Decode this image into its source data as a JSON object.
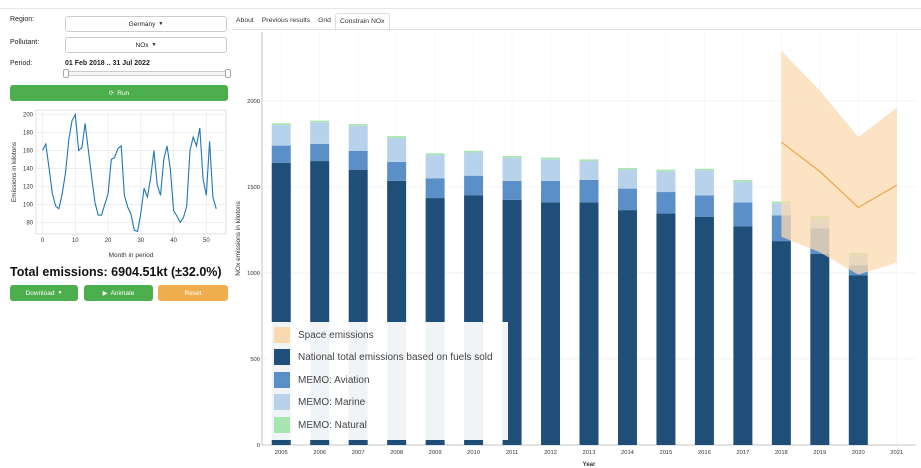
{
  "sidebar": {
    "region_label": "Region:",
    "region_value": "Germany",
    "pollutant_label": "Pollutant:",
    "pollutant_value": "NOx",
    "period_label": "Period:",
    "period_value": "01 Feb 2018 .. 31 Jul 2022",
    "run_label": "Run",
    "total_emissions": "Total emissions: 6904.51kt (±32.0%)",
    "download_label": "Download",
    "animate_label": "Animate",
    "reset_label": "Reset"
  },
  "colors": {
    "run": "#4cae4c",
    "download": "#4cae4c",
    "animate": "#4cae4c",
    "reset": "#f0ad4e",
    "national": "#1f4e79",
    "aviation": "#5b8fc7",
    "marine": "#b9d2ec",
    "natural": "#a8e6b0",
    "space": "#fad9b0",
    "space_line": "#f0a850",
    "mini_line": "#1f77b4"
  },
  "tabs": [
    "About",
    "Previous results",
    "Grid",
    "Constrain NOx"
  ],
  "active_tab": 3,
  "chart_data": [
    {
      "type": "line",
      "title": "",
      "xlabel": "Month in period",
      "ylabel": "Emissions in kilotons",
      "xlim": [
        -2,
        56
      ],
      "ylim": [
        67,
        205
      ],
      "xticks": [
        0,
        10,
        20,
        30,
        40,
        50
      ],
      "yticks": [
        80,
        100,
        120,
        140,
        160,
        180,
        200
      ],
      "grid": true,
      "x": [
        0,
        1,
        2,
        3,
        4,
        5,
        6,
        7,
        8,
        9,
        10,
        11,
        12,
        13,
        14,
        15,
        16,
        17,
        18,
        19,
        20,
        21,
        22,
        23,
        24,
        25,
        26,
        27,
        28,
        29,
        30,
        31,
        32,
        33,
        34,
        35,
        36,
        37,
        38,
        39,
        40,
        41,
        42,
        43,
        44,
        45,
        46,
        47,
        48,
        49,
        50,
        51,
        52,
        53
      ],
      "values": [
        160,
        167,
        140,
        112,
        98,
        95,
        112,
        135,
        172,
        193,
        200,
        160,
        163,
        190,
        160,
        130,
        102,
        88,
        88,
        100,
        112,
        150,
        152,
        162,
        165,
        110,
        97,
        89,
        71,
        70,
        90,
        118,
        108,
        130,
        160,
        122,
        110,
        150,
        165,
        140,
        93,
        87,
        80,
        85,
        98,
        160,
        175,
        165,
        185,
        128,
        110,
        170,
        108,
        95
      ]
    },
    {
      "type": "bar",
      "title": "",
      "xlabel": "Year",
      "ylabel": "NOx emissions in kilotons",
      "ylim": [
        0,
        2400
      ],
      "yticks": [
        0,
        500,
        1000,
        1500,
        2000
      ],
      "grid": true,
      "legend": "bottom-left",
      "categories": [
        "2005",
        "2006",
        "2007",
        "2008",
        "2009",
        "2010",
        "2011",
        "2012",
        "2013",
        "2014",
        "2015",
        "2016",
        "2017",
        "2018",
        "2019",
        "2020",
        "2021"
      ],
      "stacked": true,
      "series": [
        {
          "name": "National total emissions based on fuels sold",
          "values": [
            1640,
            1650,
            1600,
            1535,
            1435,
            1450,
            1425,
            1410,
            1410,
            1365,
            1345,
            1325,
            1270,
            1185,
            1110,
            985,
            null
          ]
        },
        {
          "name": "MEMO: Aviation",
          "values": [
            100,
            100,
            110,
            110,
            115,
            115,
            110,
            125,
            130,
            125,
            125,
            125,
            140,
            150,
            150,
            60,
            null
          ]
        },
        {
          "name": "MEMO: Marine",
          "values": [
            120,
            125,
            145,
            140,
            135,
            135,
            135,
            125,
            110,
            110,
            120,
            145,
            120,
            70,
            55,
            55,
            null
          ]
        },
        {
          "name": "MEMO: Natural",
          "values": [
            10,
            10,
            10,
            10,
            10,
            10,
            10,
            10,
            10,
            10,
            10,
            10,
            10,
            10,
            15,
            15,
            null
          ]
        }
      ],
      "space_emissions": {
        "name": "Space emissions",
        "x": [
          "2018",
          "2019",
          "2020",
          "2021"
        ],
        "mean": [
          1760,
          1590,
          1380,
          1510
        ],
        "upper": [
          2290,
          2060,
          1790,
          1960
        ],
        "lower": [
          1210,
          1120,
          990,
          1060
        ]
      }
    }
  ]
}
